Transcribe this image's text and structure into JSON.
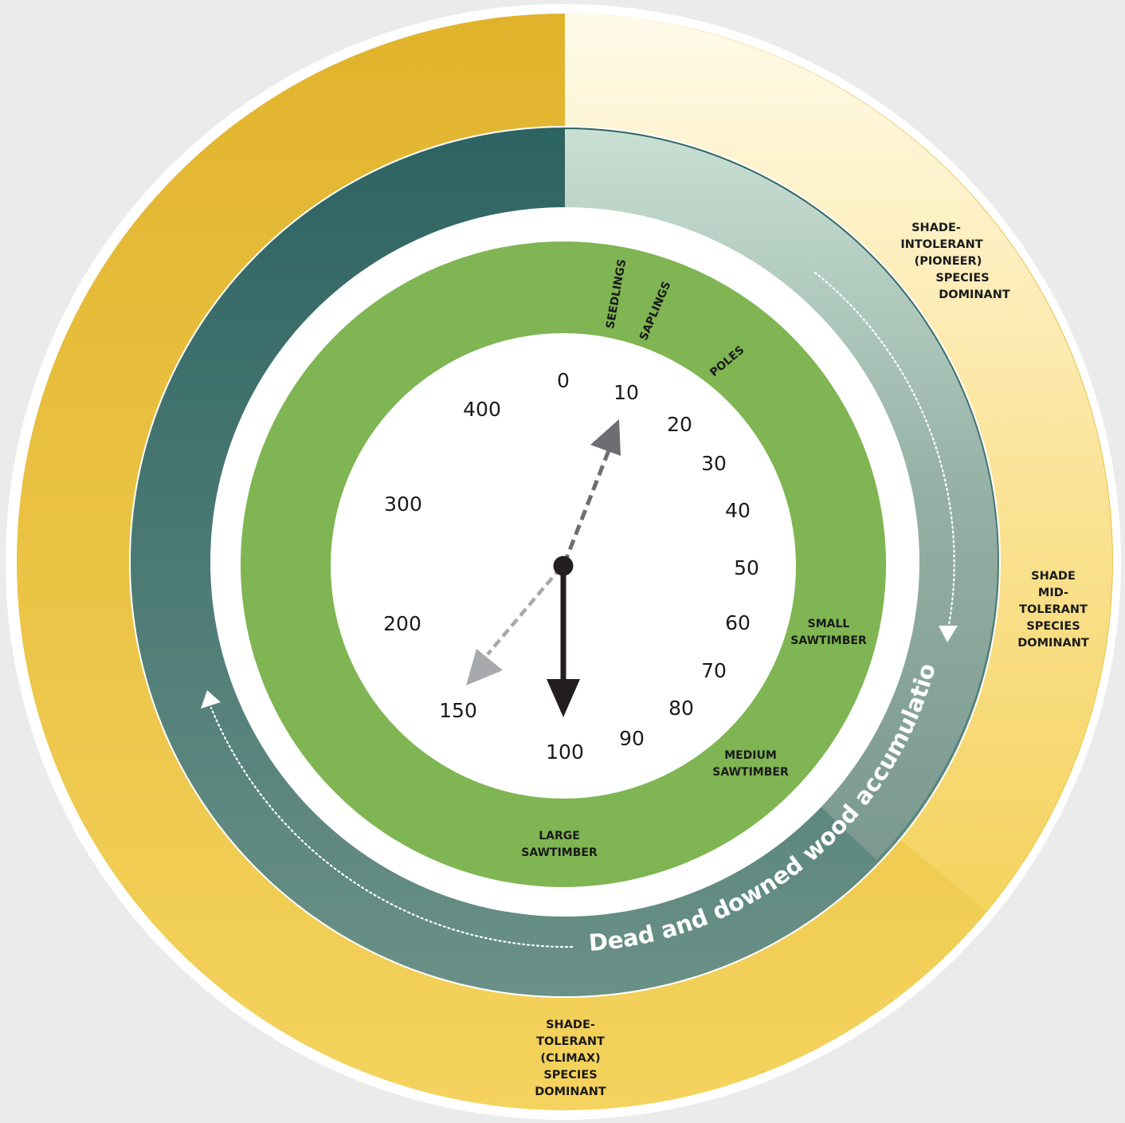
{
  "age_scale": {
    "ticks": [
      "0",
      "10",
      "20",
      "30",
      "40",
      "50",
      "60",
      "70",
      "80",
      "90",
      "100",
      "150",
      "200",
      "300",
      "400"
    ]
  },
  "structural_stages": {
    "seedlings": "SEEDLINGS",
    "saplings": "SAPLINGS",
    "poles": "POLES",
    "small_sawtimber": [
      "SMALL",
      "SAWTIMBER"
    ],
    "medium_sawtimber": [
      "MEDIUM",
      "SAWTIMBER"
    ],
    "large_sawtimber": [
      "LARGE",
      "SAWTIMBER"
    ]
  },
  "species_dominance": {
    "shade_intolerant": [
      "SHADE-",
      "INTOLERANT",
      "(PIONEER)",
      "SPECIES",
      "DOMINANT"
    ],
    "shade_mid_tolerant": [
      "SHADE",
      "MID-",
      "TOLERANT",
      "SPECIES",
      "DOMINANT"
    ],
    "shade_tolerant": [
      "SHADE-",
      "TOLERANT",
      "(CLIMAX)",
      "SPECIES",
      "DOMINANT"
    ]
  },
  "dead_wood_label": "Dead and downed wood accumulation",
  "pointers": {
    "current_age": 100,
    "past_age": 10,
    "future_age": 150
  },
  "colors": {
    "background": "#ebebeb",
    "outer_ring_gold": "#e5b935",
    "outer_ring_light": "#fff8dc",
    "teal_dark": "#2f6463",
    "teal_light": "#c6dfd2",
    "green_ring": "#7fb552",
    "dial_face": "#ffffff",
    "arrow_dark": "#231f20",
    "arrow_grey_dark": "#6d6e71",
    "arrow_grey_light": "#a7a9ac"
  }
}
